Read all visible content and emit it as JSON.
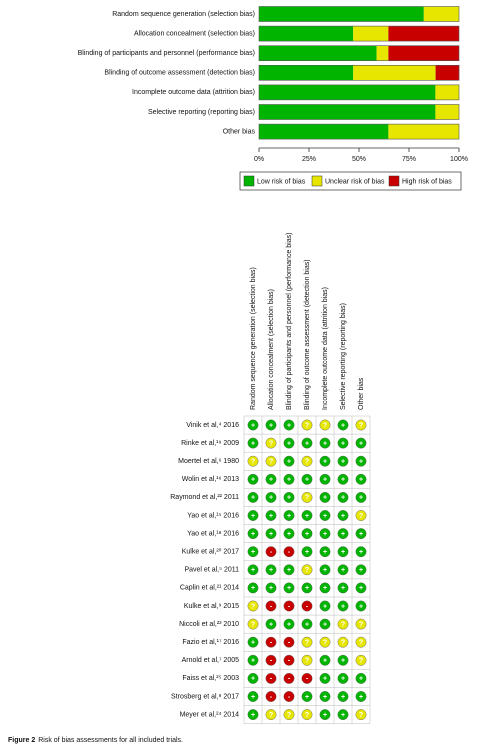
{
  "chart_data": {
    "type": "stacked-bar-horizontal",
    "categories": [
      "Random sequence generation (selection bias)",
      "Allocation concealment (selection bias)",
      "Blinding of participants and personnel (performance bias)",
      "Blinding of outcome assessment (detection bias)",
      "Incomplete outcome data (attrition bias)",
      "Selective reporting (reporting bias)",
      "Other bias"
    ],
    "series": [
      {
        "name": "Low risk of bias",
        "color": "#00b400",
        "values": [
          82.4,
          47.1,
          58.8,
          47.1,
          88.2,
          88.2,
          64.7
        ]
      },
      {
        "name": "Unclear risk of bias",
        "color": "#e6e600",
        "values": [
          17.6,
          17.6,
          5.9,
          41.2,
          11.8,
          11.8,
          35.3
        ]
      },
      {
        "name": "High risk of bias",
        "color": "#c80000",
        "values": [
          0,
          35.3,
          35.3,
          11.8,
          0,
          0,
          0
        ]
      }
    ],
    "xlim": [
      0,
      100
    ],
    "xticks": [
      {
        "value": 0,
        "label": "0%"
      },
      {
        "value": 25,
        "label": "25%"
      },
      {
        "value": 50,
        "label": "50%"
      },
      {
        "value": 75,
        "label": "75%"
      },
      {
        "value": 100,
        "label": "100%"
      }
    ]
  },
  "table": {
    "columns": [
      "Random sequence generation (selection bias)",
      "Allocation concealment (selection bias)",
      "Blinding of participants and personnel (performance bias)",
      "Blinding of outcome assessment (detection bias)",
      "Incomplete outcome data (attrition bias)",
      "Selective reporting (reporting bias)",
      "Other bias"
    ],
    "judgement_colors": {
      "+": "#00b400",
      "?": "#e6e600",
      "-": "#c80000"
    },
    "rows": [
      {
        "study": "Vinik et al,⁴ 2016",
        "judgements": [
          "+",
          "+",
          "+",
          "?",
          "?",
          "+",
          "?"
        ]
      },
      {
        "study": "Rinke et al,¹⁹ 2009",
        "judgements": [
          "+",
          "?",
          "+",
          "+",
          "+",
          "+",
          "+"
        ]
      },
      {
        "study": "Moertel et al,⁶ 1980",
        "judgements": [
          "?",
          "?",
          "+",
          "?",
          "+",
          "+",
          "+"
        ]
      },
      {
        "study": "Wolin et al,¹⁶ 2013",
        "judgements": [
          "+",
          "+",
          "+",
          "+",
          "+",
          "+",
          "+"
        ]
      },
      {
        "study": "Raymond et al,²² 2011",
        "judgements": [
          "+",
          "+",
          "+",
          "?",
          "+",
          "+",
          "+"
        ]
      },
      {
        "study": "Yao et al,¹⁵ 2016",
        "judgements": [
          "+",
          "+",
          "+",
          "+",
          "+",
          "+",
          "?"
        ]
      },
      {
        "study": "Yao et al,¹⁸ 2016",
        "judgements": [
          "+",
          "+",
          "+",
          "+",
          "+",
          "+",
          "+"
        ]
      },
      {
        "study": "Kulke et al,²⁰ 2017",
        "judgements": [
          "+",
          "-",
          "-",
          "+",
          "+",
          "+",
          "+"
        ]
      },
      {
        "study": "Pavel et al,⁵ 2011",
        "judgements": [
          "+",
          "+",
          "+",
          "?",
          "+",
          "+",
          "+"
        ]
      },
      {
        "study": "Caplin et al,²¹ 2014",
        "judgements": [
          "+",
          "+",
          "+",
          "+",
          "+",
          "+",
          "+"
        ]
      },
      {
        "study": "Kulke et al,⁹ 2015",
        "judgements": [
          "?",
          "-",
          "-",
          "-",
          "+",
          "+",
          "+"
        ]
      },
      {
        "study": "Niccoli et al,²³ 2010",
        "judgements": [
          "?",
          "+",
          "+",
          "+",
          "+",
          "?",
          "?"
        ]
      },
      {
        "study": "Fazio et al,¹⁷ 2016",
        "judgements": [
          "+",
          "-",
          "-",
          "?",
          "?",
          "?",
          "?"
        ]
      },
      {
        "study": "Arnold et al,⁷ 2005",
        "judgements": [
          "+",
          "-",
          "-",
          "?",
          "+",
          "+",
          "?"
        ]
      },
      {
        "study": "Faiss et al,²⁵ 2003",
        "judgements": [
          "+",
          "-",
          "-",
          "-",
          "+",
          "+",
          "+"
        ]
      },
      {
        "study": "Strosberg et al,⁸ 2017",
        "judgements": [
          "+",
          "-",
          "-",
          "+",
          "+",
          "+",
          "+"
        ]
      },
      {
        "study": "Meyer et al,²⁴ 2014",
        "judgements": [
          "+",
          "?",
          "?",
          "?",
          "+",
          "+",
          "?"
        ]
      }
    ]
  },
  "figure_caption": {
    "label": "Figure 2",
    "text": "Risk of bias assessments for all included trials."
  }
}
